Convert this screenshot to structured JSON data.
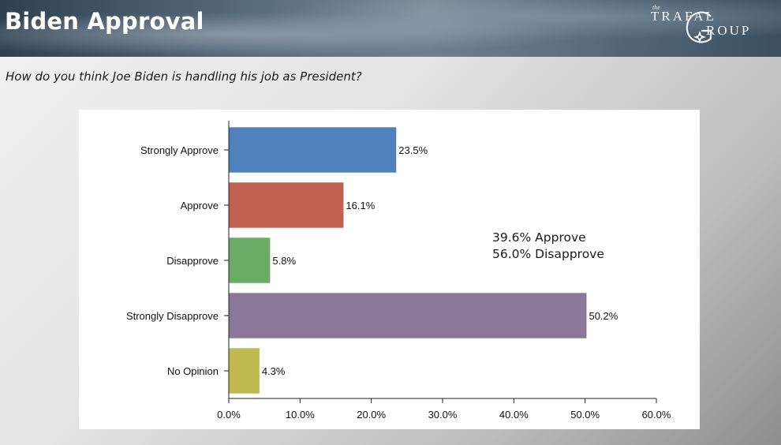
{
  "header": {
    "title": "Biden Approval",
    "logo": {
      "the": "the",
      "line1": "TRAFAL",
      "line2": "ROUP",
      "mark": "compass-g-monogram"
    }
  },
  "question": "How do you think Joe Biden is handling his job as President?",
  "summary": {
    "approve": "39.6% Approve",
    "disapprove": "56.0% Disapprove"
  },
  "chart_data": {
    "type": "bar",
    "orientation": "horizontal",
    "categories": [
      "Strongly Approve",
      "Approve",
      "Disapprove",
      "Strongly Disapprove",
      "No Opinion"
    ],
    "values": [
      23.5,
      16.1,
      5.8,
      50.2,
      4.3
    ],
    "value_labels": [
      "23.5%",
      "16.1%",
      "5.8%",
      "50.2%",
      "4.3%"
    ],
    "colors": [
      "#4f81bd",
      "#c0604f",
      "#6aac65",
      "#8b779a",
      "#bfb950"
    ],
    "xlim": [
      0,
      60
    ],
    "x_ticks": [
      0,
      10,
      20,
      30,
      40,
      50,
      60
    ],
    "x_tick_labels": [
      "0.0%",
      "10.0%",
      "20.0%",
      "30.0%",
      "40.0%",
      "50.0%",
      "60.0%"
    ],
    "grid": false,
    "title": "",
    "xlabel": "",
    "ylabel": ""
  }
}
